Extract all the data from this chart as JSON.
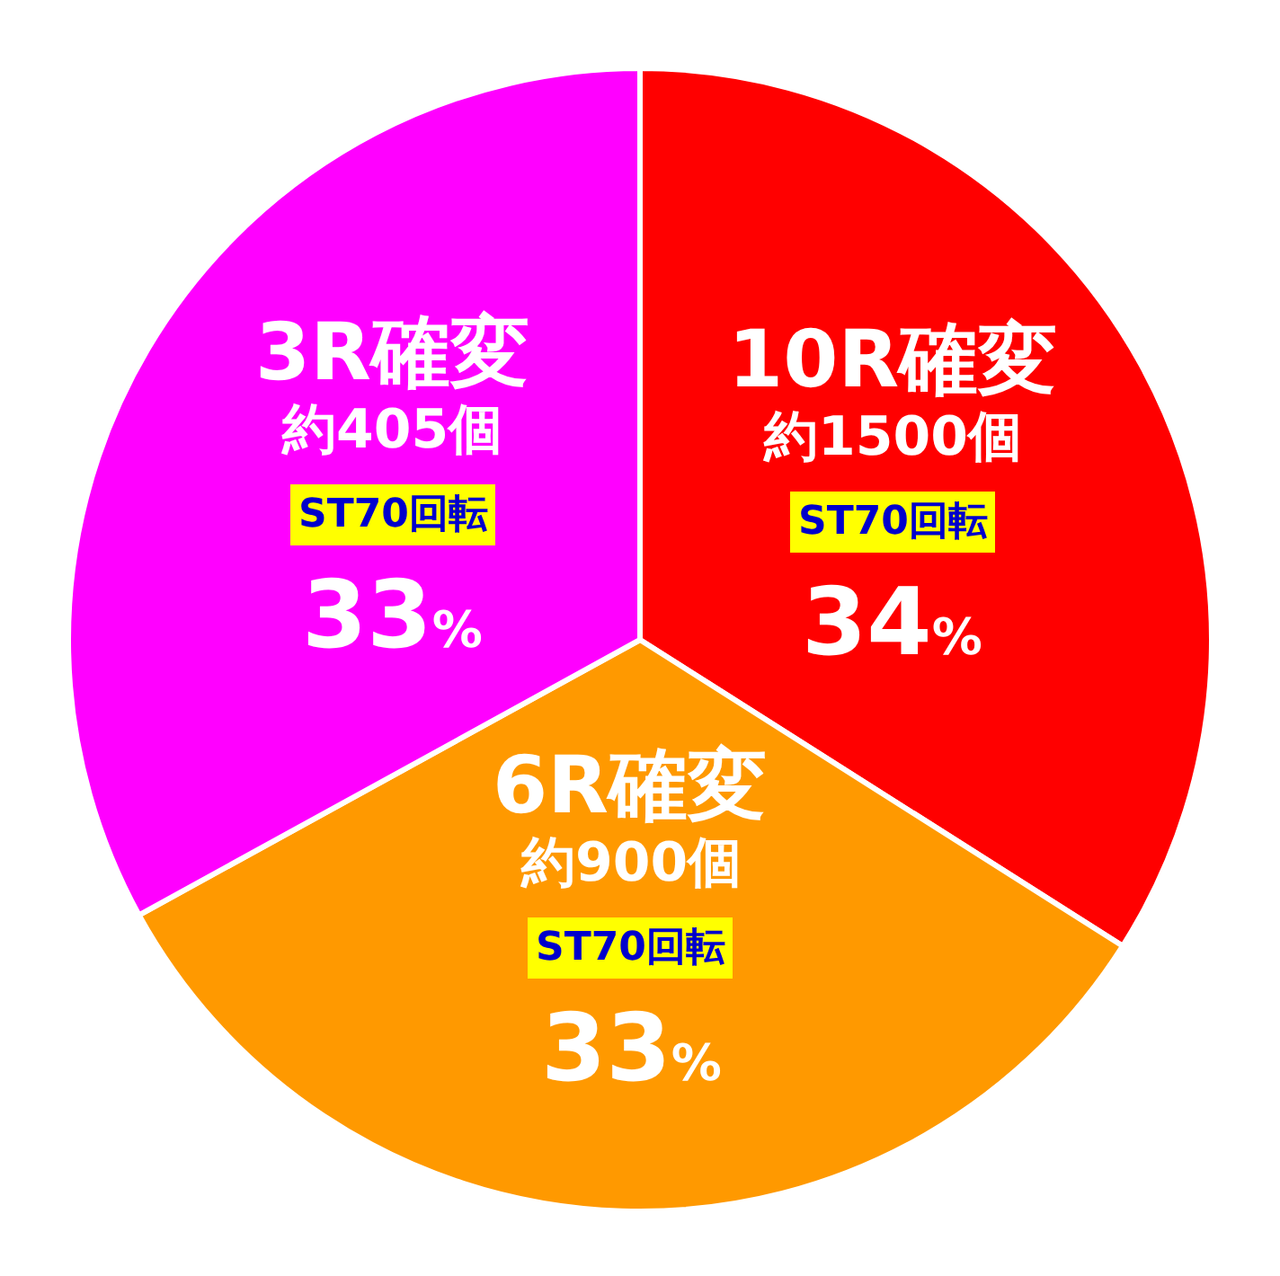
{
  "chart_data": {
    "type": "pie",
    "categories": [
      "10R確変",
      "6R確変",
      "3R確変"
    ],
    "values": [
      34,
      33,
      33
    ],
    "colors": [
      "#ff0000",
      "#ff9900",
      "#ff00ff"
    ],
    "value_labels": [
      "34%",
      "33%",
      "33%"
    ],
    "annotations": [
      "約1500個",
      "ST70回転",
      "約900個",
      "ST70回転",
      "約405個",
      "ST70回転"
    ]
  }
}
